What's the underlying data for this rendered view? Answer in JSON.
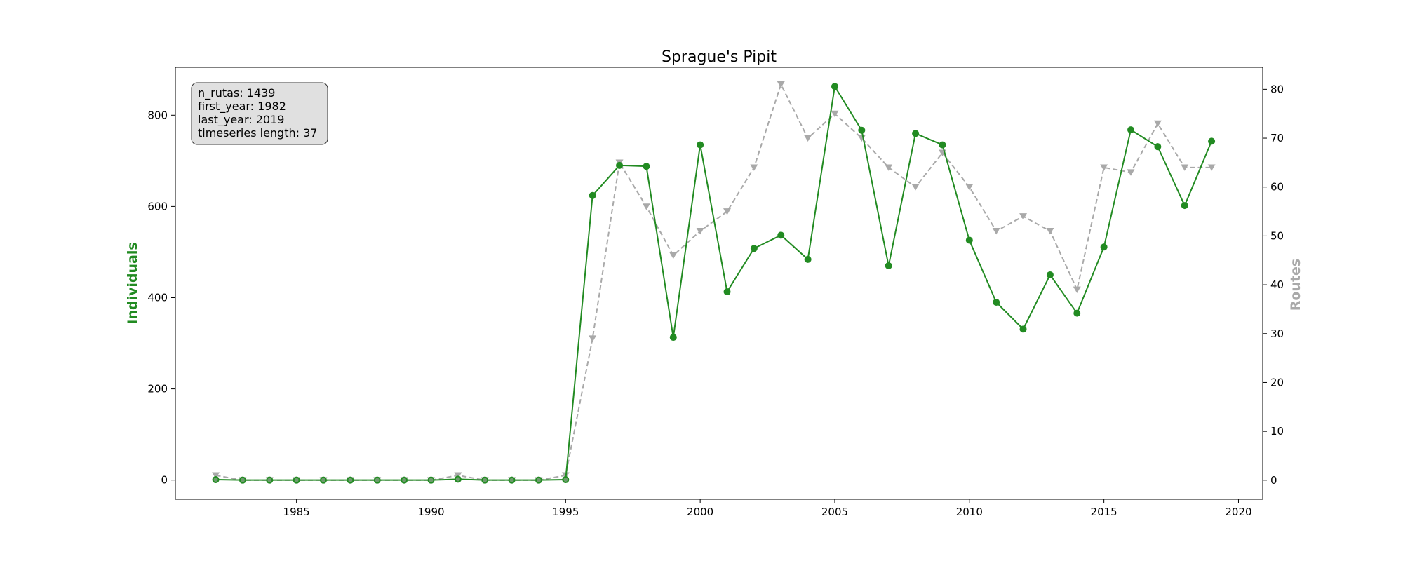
{
  "chart_data": {
    "type": "line",
    "title": "Sprague's Pipit",
    "xlabel": "",
    "ylabel_left": "Individuals",
    "ylabel_right": "Routes",
    "xlim": [
      1980.5,
      2020.9
    ],
    "ylim_left": [
      -42,
      905
    ],
    "ylim_right": [
      -3.9,
      84.5
    ],
    "x_ticks": [
      1985,
      1990,
      1995,
      2000,
      2005,
      2010,
      2015,
      2020
    ],
    "y_left_ticks": [
      0,
      200,
      400,
      600,
      800
    ],
    "y_right_ticks": [
      0,
      10,
      20,
      30,
      40,
      50,
      60,
      70,
      80
    ],
    "grid": false,
    "colors": {
      "individuals": "#228B22",
      "routes": "#A9A9A9",
      "info_box_bg": "#E0E0E0"
    },
    "x": [
      1982,
      1983,
      1984,
      1985,
      1986,
      1987,
      1988,
      1989,
      1990,
      1991,
      1992,
      1993,
      1994,
      1995,
      1996,
      1997,
      1998,
      1999,
      2000,
      2001,
      2002,
      2003,
      2004,
      2005,
      2006,
      2007,
      2008,
      2009,
      2010,
      2011,
      2012,
      2013,
      2014,
      2015,
      2016,
      2017,
      2018,
      2019
    ],
    "series": [
      {
        "name": "Individuals",
        "axis": "left",
        "style": "solid",
        "marker": "circle",
        "values": [
          1,
          0,
          0,
          0,
          0,
          0,
          0,
          0,
          0,
          2,
          0,
          0,
          0,
          1,
          624,
          690,
          688,
          313,
          735,
          413,
          508,
          537,
          484,
          863,
          767,
          470,
          760,
          735,
          526,
          390,
          331,
          450,
          366,
          511,
          768,
          731,
          602,
          743
        ]
      },
      {
        "name": "Routes",
        "axis": "right",
        "style": "dashed",
        "marker": "triangle-down",
        "values": [
          1,
          0,
          0,
          0,
          0,
          0,
          0,
          0,
          0,
          1,
          0,
          0,
          0,
          1,
          29,
          65,
          56,
          46,
          51,
          55,
          64,
          81,
          70,
          75,
          70,
          64,
          60,
          67,
          60,
          51,
          54,
          51,
          39,
          64,
          63,
          73,
          64,
          64
        ]
      }
    ],
    "info_box": {
      "lines": [
        "n_rutas: 1439",
        "first_year: 1982",
        "last_year: 2019",
        "timeseries length: 37"
      ]
    }
  }
}
